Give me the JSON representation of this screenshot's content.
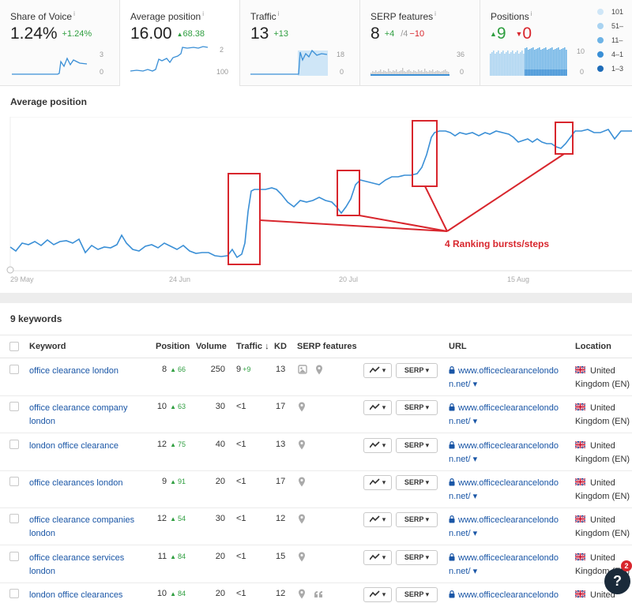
{
  "metrics": {
    "share_of_voice": {
      "title": "Share of Voice",
      "info": "i",
      "value": "1.24%",
      "delta": "+1.24%",
      "axis_top": "3",
      "axis_bottom": "0"
    },
    "average_position": {
      "title": "Average position",
      "info": "i",
      "value": "16.00",
      "delta_arrow": "▲",
      "delta": "68.38",
      "axis_top": "2",
      "axis_bottom": "100"
    },
    "traffic": {
      "title": "Traffic",
      "info": "i",
      "value": "13",
      "delta": "+13",
      "axis_top": "18",
      "axis_bottom": "0"
    },
    "serp_features": {
      "title": "SERP features",
      "info": "i",
      "value": "8",
      "delta_pos": "+4",
      "delta_mid": "/4",
      "delta_neg": "−10",
      "axis_top": "36",
      "axis_bottom": "0"
    },
    "positions": {
      "title": "Positions",
      "info": "i",
      "up_arrow": "▲",
      "up": "9",
      "down_arrow": "▼",
      "down": "0",
      "axis_top": "10",
      "axis_bottom": "0",
      "legend": [
        {
          "label": "101",
          "color": "#cfe6f7"
        },
        {
          "label": "51–",
          "color": "#a9d3f1"
        },
        {
          "label": "11–",
          "color": "#6db3e6"
        },
        {
          "label": "4–1",
          "color": "#3a8fd6"
        },
        {
          "label": "1–3",
          "color": "#1e6cb8"
        }
      ]
    }
  },
  "chart": {
    "title": "Average position",
    "x_labels": [
      "29 May",
      "24 Jun",
      "20 Jul",
      "15 Aug"
    ],
    "annotation": "4 Ranking bursts/steps"
  },
  "table": {
    "count_label": "9 keywords",
    "headers": {
      "keyword": "Keyword",
      "position": "Position",
      "volume": "Volume",
      "traffic": "Traffic ↓",
      "kd": "KD",
      "serp_features": "SERP features",
      "url": "URL",
      "location": "Location"
    },
    "chart_button_label": "▾",
    "serp_button_label": "SERP ▾",
    "rows": [
      {
        "keyword": "office clearance london",
        "position": "8",
        "pos_delta": "66",
        "volume": "250",
        "traffic": "9",
        "traffic_delta": "+9",
        "kd": "13",
        "serp_icons": [
          "image-icon",
          "pin-icon"
        ],
        "url": "www.officeclearancelondon.net/ ▾",
        "location": "United Kingdom (EN)"
      },
      {
        "keyword": "office clearance company london",
        "position": "10",
        "pos_delta": "63",
        "volume": "30",
        "traffic": "<1",
        "traffic_delta": "",
        "kd": "17",
        "serp_icons": [
          "pin-icon"
        ],
        "url": "www.officeclearancelondon.net/ ▾",
        "location": "United Kingdom (EN)"
      },
      {
        "keyword": "london office clearance",
        "position": "12",
        "pos_delta": "75",
        "volume": "40",
        "traffic": "<1",
        "traffic_delta": "",
        "kd": "13",
        "serp_icons": [
          "pin-icon"
        ],
        "url": "www.officeclearancelondon.net/ ▾",
        "location": "United Kingdom (EN)"
      },
      {
        "keyword": "office clearances london",
        "position": "9",
        "pos_delta": "91",
        "volume": "20",
        "traffic": "<1",
        "traffic_delta": "",
        "kd": "17",
        "serp_icons": [
          "pin-icon"
        ],
        "url": "www.officeclearancelondon.net/ ▾",
        "location": "United Kingdom (EN)"
      },
      {
        "keyword": "office clearance companies london",
        "position": "12",
        "pos_delta": "54",
        "volume": "30",
        "traffic": "<1",
        "traffic_delta": "",
        "kd": "12",
        "serp_icons": [
          "pin-icon"
        ],
        "url": "www.officeclearancelondon.net/ ▾",
        "location": "United Kingdom (EN)"
      },
      {
        "keyword": "office clearance services london",
        "position": "11",
        "pos_delta": "84",
        "volume": "20",
        "traffic": "<1",
        "traffic_delta": "",
        "kd": "15",
        "serp_icons": [
          "pin-icon"
        ],
        "url": "www.officeclearancelondon.net/ ▾",
        "location": "United Kingdom (EN)"
      },
      {
        "keyword": "london office clearances",
        "position": "10",
        "pos_delta": "84",
        "volume": "20",
        "traffic": "<1",
        "traffic_delta": "",
        "kd": "12",
        "serp_icons": [
          "pin-icon",
          "quote-icon"
        ],
        "url": "www.officeclearancelondon.net/ ▾",
        "location": "United Kingdom (EN)"
      }
    ]
  },
  "help": {
    "label": "?",
    "badge": "2"
  },
  "colors": {
    "link": "#1a56a6",
    "positive": "#2e9e3f",
    "negative": "#d8262d",
    "line": "#3a8fd6",
    "annotation": "#d8262d"
  }
}
